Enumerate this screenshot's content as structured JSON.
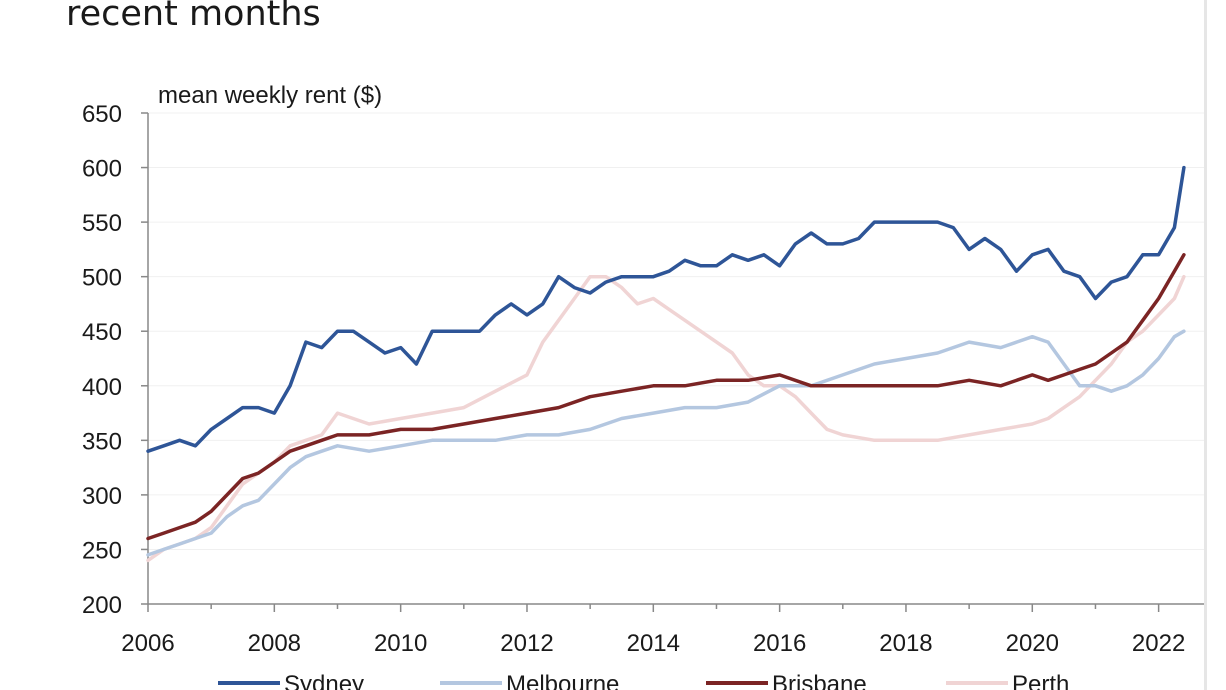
{
  "title_fragment": "recent months",
  "chart_data": {
    "type": "line",
    "title": "",
    "ylabel": "mean weekly rent ($)",
    "xlabel": "",
    "ylim": [
      200,
      650
    ],
    "xlim": [
      2006,
      2022.75
    ],
    "yticks": [
      200,
      250,
      300,
      350,
      400,
      450,
      500,
      550,
      600,
      650
    ],
    "xticks": [
      2006,
      2008,
      2010,
      2012,
      2014,
      2016,
      2018,
      2020,
      2022
    ],
    "grid": "horizontal",
    "legend": "bottom",
    "series": [
      {
        "name": "Sydney",
        "color": "#2e5597",
        "x": [
          2006.0,
          2006.25,
          2006.5,
          2006.75,
          2007.0,
          2007.25,
          2007.5,
          2007.75,
          2008.0,
          2008.25,
          2008.5,
          2008.75,
          2009.0,
          2009.25,
          2009.5,
          2009.75,
          2010.0,
          2010.25,
          2010.5,
          2010.75,
          2011.0,
          2011.25,
          2011.5,
          2011.75,
          2012.0,
          2012.25,
          2012.5,
          2012.75,
          2013.0,
          2013.25,
          2013.5,
          2013.75,
          2014.0,
          2014.25,
          2014.5,
          2014.75,
          2015.0,
          2015.25,
          2015.5,
          2015.75,
          2016.0,
          2016.25,
          2016.5,
          2016.75,
          2017.0,
          2017.25,
          2017.5,
          2017.75,
          2018.0,
          2018.25,
          2018.5,
          2018.75,
          2019.0,
          2019.25,
          2019.5,
          2019.75,
          2020.0,
          2020.25,
          2020.5,
          2020.75,
          2021.0,
          2021.25,
          2021.5,
          2021.75,
          2022.0,
          2022.25,
          2022.4
        ],
        "y": [
          340,
          345,
          350,
          345,
          360,
          370,
          380,
          380,
          375,
          400,
          440,
          435,
          450,
          450,
          440,
          430,
          435,
          420,
          450,
          450,
          450,
          450,
          465,
          475,
          465,
          475,
          500,
          490,
          485,
          495,
          500,
          500,
          500,
          505,
          515,
          510,
          510,
          520,
          515,
          520,
          510,
          530,
          540,
          530,
          530,
          535,
          550,
          550,
          550,
          550,
          550,
          545,
          525,
          535,
          525,
          505,
          520,
          525,
          505,
          500,
          480,
          495,
          500,
          520,
          520,
          545,
          600
        ]
      },
      {
        "name": "Melbourne",
        "color": "#b4c7e0",
        "x": [
          2006.0,
          2006.25,
          2006.5,
          2006.75,
          2007.0,
          2007.25,
          2007.5,
          2007.75,
          2008.0,
          2008.25,
          2008.5,
          2008.75,
          2009.0,
          2009.5,
          2010.0,
          2010.5,
          2011.0,
          2011.5,
          2012.0,
          2012.5,
          2013.0,
          2013.5,
          2014.0,
          2014.5,
          2015.0,
          2015.5,
          2016.0,
          2016.5,
          2017.0,
          2017.5,
          2018.0,
          2018.5,
          2019.0,
          2019.5,
          2020.0,
          2020.25,
          2020.5,
          2020.75,
          2021.0,
          2021.25,
          2021.5,
          2021.75,
          2022.0,
          2022.25,
          2022.4
        ],
        "y": [
          245,
          250,
          255,
          260,
          265,
          280,
          290,
          295,
          310,
          325,
          335,
          340,
          345,
          340,
          345,
          350,
          350,
          350,
          355,
          355,
          360,
          370,
          375,
          380,
          380,
          385,
          400,
          400,
          410,
          420,
          425,
          430,
          440,
          435,
          445,
          440,
          420,
          400,
          400,
          395,
          400,
          410,
          425,
          445,
          450
        ]
      },
      {
        "name": "Brisbane",
        "color": "#7b2424",
        "x": [
          2006.0,
          2006.25,
          2006.5,
          2006.75,
          2007.0,
          2007.25,
          2007.5,
          2007.75,
          2008.0,
          2008.25,
          2008.5,
          2008.75,
          2009.0,
          2009.5,
          2010.0,
          2010.5,
          2011.0,
          2011.5,
          2012.0,
          2012.5,
          2013.0,
          2013.5,
          2014.0,
          2014.5,
          2015.0,
          2015.5,
          2016.0,
          2016.5,
          2017.0,
          2017.5,
          2018.0,
          2018.5,
          2019.0,
          2019.5,
          2020.0,
          2020.25,
          2020.5,
          2020.75,
          2021.0,
          2021.25,
          2021.5,
          2021.75,
          2022.0,
          2022.25,
          2022.4
        ],
        "y": [
          260,
          265,
          270,
          275,
          285,
          300,
          315,
          320,
          330,
          340,
          345,
          350,
          355,
          355,
          360,
          360,
          365,
          370,
          375,
          380,
          390,
          395,
          400,
          400,
          405,
          405,
          410,
          400,
          400,
          400,
          400,
          400,
          405,
          400,
          410,
          405,
          410,
          415,
          420,
          430,
          440,
          460,
          480,
          505,
          520
        ]
      },
      {
        "name": "Perth",
        "color": "#f0d4d4",
        "x": [
          2006.0,
          2006.25,
          2006.5,
          2006.75,
          2007.0,
          2007.25,
          2007.5,
          2007.75,
          2008.0,
          2008.25,
          2008.5,
          2008.75,
          2009.0,
          2009.5,
          2010.0,
          2010.5,
          2011.0,
          2011.5,
          2012.0,
          2012.25,
          2012.5,
          2012.75,
          2013.0,
          2013.25,
          2013.5,
          2013.75,
          2014.0,
          2014.25,
          2014.5,
          2014.75,
          2015.0,
          2015.25,
          2015.5,
          2015.75,
          2016.0,
          2016.25,
          2016.5,
          2016.75,
          2017.0,
          2017.5,
          2018.0,
          2018.5,
          2019.0,
          2019.5,
          2020.0,
          2020.25,
          2020.5,
          2020.75,
          2021.0,
          2021.25,
          2021.5,
          2021.75,
          2022.0,
          2022.25,
          2022.4
        ],
        "y": [
          240,
          250,
          255,
          260,
          270,
          290,
          310,
          320,
          330,
          345,
          350,
          355,
          375,
          365,
          370,
          375,
          380,
          395,
          410,
          440,
          460,
          480,
          500,
          500,
          490,
          475,
          480,
          470,
          460,
          450,
          440,
          430,
          410,
          400,
          400,
          390,
          375,
          360,
          355,
          350,
          350,
          350,
          355,
          360,
          365,
          370,
          380,
          390,
          405,
          420,
          440,
          450,
          465,
          480,
          500
        ]
      }
    ]
  }
}
